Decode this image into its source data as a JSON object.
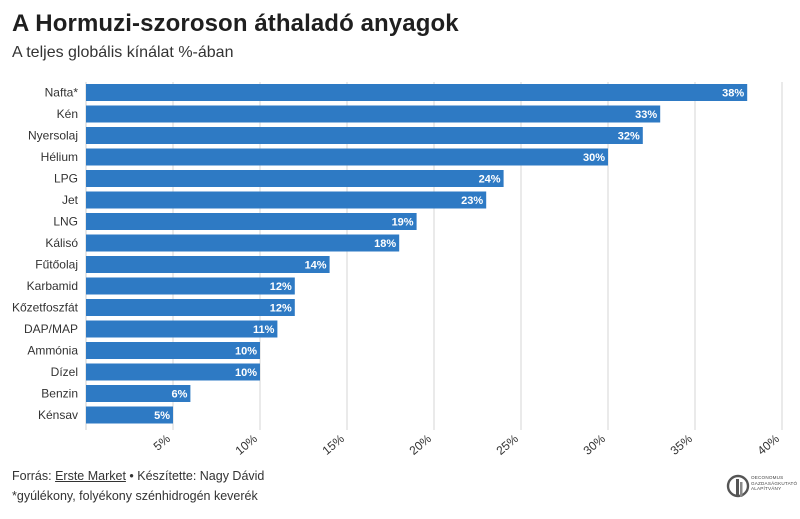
{
  "title": "A Hormuzi-szoroson áthaladó anyagok",
  "subtitle": "A teljes globális kínálat %-ában",
  "chart_data": {
    "type": "bar",
    "orientation": "horizontal",
    "title": "A Hormuzi-szoroson áthaladó anyagok",
    "subtitle": "A teljes globális kínálat %-ában",
    "categories": [
      "Nafta*",
      "Kén",
      "Nyersolaj",
      "Hélium",
      "LPG",
      "Jet",
      "LNG",
      "Kálisó",
      "Fűtőolaj",
      "Karbamid",
      "Kőzetfoszfát",
      "DAP/MAP",
      "Ammónia",
      "Dízel",
      "Benzin",
      "Kénsav"
    ],
    "values": [
      38,
      33,
      32,
      30,
      24,
      23,
      19,
      18,
      14,
      12,
      12,
      11,
      10,
      10,
      6,
      5
    ],
    "value_labels": [
      "38%",
      "33%",
      "32%",
      "30%",
      "24%",
      "23%",
      "19%",
      "18%",
      "14%",
      "12%",
      "12%",
      "11%",
      "10%",
      "10%",
      "6%",
      "5%"
    ],
    "xlim": [
      0,
      40
    ],
    "xticks": [
      5,
      10,
      15,
      20,
      25,
      30,
      35,
      40
    ],
    "xtick_labels": [
      "5%",
      "10%",
      "15%",
      "20%",
      "25%",
      "30%",
      "35%",
      "40%"
    ],
    "xlabel": "",
    "ylabel": "",
    "grid": "vertical",
    "bar_color": "#2e7ac4",
    "label_color": "#ffffff"
  },
  "footer": {
    "source_prefix": "Forrás: ",
    "source_link": "Erste Market",
    "author": " • Készítette: Nagy Dávid",
    "note": "*gyúlékony, folyékony szénhidrogén keverék"
  },
  "logo": {
    "text_line1": "OECONOMUS",
    "text_line2": "GAZDASÁGKUTATÓ",
    "text_line3": "ALAPÍTVÁNY"
  }
}
